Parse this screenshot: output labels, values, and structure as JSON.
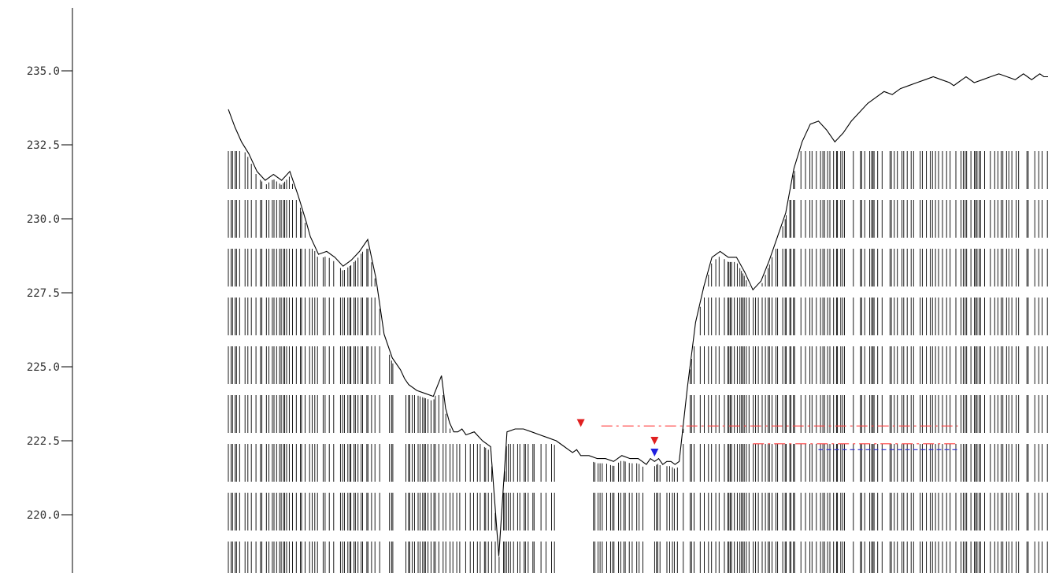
{
  "chart_data": {
    "type": "line",
    "title": "",
    "xlabel": "",
    "ylabel": "",
    "ylim": [
      217.5,
      237.0
    ],
    "yticks": [
      "220.0",
      "222.5",
      "225.0",
      "227.5",
      "230.0",
      "232.5",
      "235.0"
    ],
    "ytick_values": [
      220.0,
      222.5,
      225.0,
      227.5,
      230.0,
      232.5,
      235.0
    ],
    "grid": false,
    "x_range": [
      0,
      1000
    ],
    "series": [
      {
        "style": "solid",
        "color": "#000000",
        "x": [
          0,
          8,
          16,
          25,
          35,
          45,
          55,
          65,
          75,
          85,
          95,
          100,
          110,
          120,
          130,
          140,
          150,
          160,
          170,
          180,
          190,
          200,
          210,
          215,
          220,
          230,
          240,
          250,
          260,
          265,
          270,
          275,
          280,
          285,
          290,
          300,
          310,
          320,
          330,
          340,
          350,
          360,
          370,
          380,
          390,
          400,
          410,
          415,
          420,
          425,
          430,
          440,
          450,
          460,
          470,
          480,
          490,
          500,
          505,
          510,
          515,
          520,
          525,
          530,
          535,
          540,
          545,
          550,
          560,
          570,
          580,
          590,
          600,
          610,
          620,
          630,
          640,
          650,
          660,
          670,
          680,
          690,
          700,
          710,
          720,
          730,
          740,
          750,
          760,
          770,
          780,
          790,
          800,
          810,
          820,
          830,
          840,
          850,
          860,
          870,
          880,
          885,
          890,
          895,
          900,
          910,
          920,
          930,
          940,
          950,
          960,
          965,
          970,
          975,
          980,
          985,
          990,
          995,
          1000
        ],
        "values": [
          233.7,
          233.1,
          232.6,
          232.2,
          231.6,
          231.3,
          231.5,
          231.3,
          231.6,
          230.8,
          229.9,
          229.4,
          228.8,
          228.9,
          228.7,
          228.4,
          228.6,
          228.9,
          229.3,
          228.0,
          226.1,
          225.3,
          224.9,
          224.6,
          224.4,
          224.2,
          224.1,
          224.0,
          224.7,
          223.6,
          223.1,
          222.8,
          222.8,
          222.9,
          222.7,
          222.8,
          222.5,
          222.3,
          218.6,
          222.8,
          222.9,
          222.9,
          222.8,
          222.7,
          222.6,
          222.5,
          222.3,
          222.2,
          222.1,
          222.2,
          222.0,
          222.0,
          221.9,
          221.9,
          221.8,
          222.0,
          221.9,
          221.9,
          221.8,
          221.7,
          221.9,
          221.8,
          221.9,
          221.7,
          221.8,
          221.8,
          221.7,
          221.8,
          224.3,
          226.5,
          227.7,
          228.7,
          228.9,
          228.7,
          228.7,
          228.2,
          227.6,
          227.9,
          228.6,
          229.4,
          230.2,
          231.7,
          232.6,
          233.2,
          233.3,
          233.0,
          232.6,
          232.9,
          233.3,
          233.6,
          233.9,
          234.1,
          234.3,
          234.2,
          234.4,
          234.5,
          234.6,
          234.7,
          234.8,
          234.7,
          234.6,
          234.5,
          234.6,
          234.7,
          234.8,
          234.6,
          234.7,
          234.8,
          234.9,
          234.8,
          234.7,
          234.8,
          234.9,
          234.8,
          234.7,
          234.8,
          234.9,
          234.8,
          234.8
        ]
      },
      {
        "style": "dashdot",
        "color": "#ff4040",
        "x": [
          455,
          890
        ],
        "values": [
          223.0,
          223.0
        ]
      },
      {
        "style": "dashdot",
        "color": "#ff4040",
        "x": [
          640,
          890
        ],
        "values": [
          222.4,
          222.4
        ]
      },
      {
        "style": "dashed",
        "color": "#2a2acc",
        "x": [
          720,
          890
        ],
        "values": [
          222.2,
          222.2
        ]
      }
    ],
    "markers": [
      {
        "shape": "triangle-down",
        "color": "#e02020",
        "x": 430,
        "y": 223.1
      },
      {
        "shape": "triangle-down",
        "color": "#e02020",
        "x": 520,
        "y": 222.5
      },
      {
        "shape": "triangle-down",
        "color": "#2020e0",
        "x": 520,
        "y": 222.1
      }
    ],
    "volume_bars": {
      "color": "#000000",
      "density": "high"
    }
  }
}
